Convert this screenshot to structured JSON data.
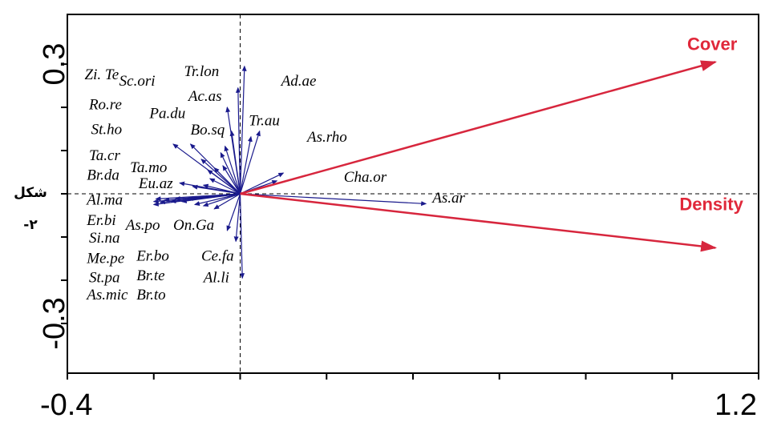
{
  "chart_data": {
    "type": "scatter",
    "subtype": "ordination biplot",
    "xlim": [
      -0.4,
      1.2
    ],
    "ylim": [
      -0.3,
      0.3
    ],
    "x_tick_labels": [
      {
        "value": -0.4,
        "text": "-0.4"
      },
      {
        "value": 1.2,
        "text": "1.2"
      }
    ],
    "y_tick_labels": [
      {
        "value": 0.3,
        "text": "0.3"
      },
      {
        "value": -0.3,
        "text": "-0.3"
      }
    ],
    "side_label": [
      "شكل",
      "-٢"
    ],
    "colors": {
      "species_arrows": "#1a1a8c",
      "env_arrows": "#d7263d",
      "env_labels": "#e0283a"
    },
    "env_vectors": [
      {
        "name": "Cover",
        "x": 1.1,
        "y": 0.305
      },
      {
        "name": "Density",
        "x": 1.1,
        "y": -0.125
      }
    ],
    "species_labels": [
      {
        "name": "Zi. Te",
        "x": -0.36,
        "y": 0.265
      },
      {
        "name": "Sc.ori",
        "x": -0.28,
        "y": 0.25
      },
      {
        "name": "Tr.lon",
        "x": -0.13,
        "y": 0.272
      },
      {
        "name": "Ad.ae",
        "x": 0.095,
        "y": 0.25
      },
      {
        "name": "Ac.as",
        "x": -0.12,
        "y": 0.215
      },
      {
        "name": "Ro.re",
        "x": -0.35,
        "y": 0.195
      },
      {
        "name": "Pa.du",
        "x": -0.21,
        "y": 0.175
      },
      {
        "name": "Tr.au",
        "x": 0.02,
        "y": 0.158
      },
      {
        "name": "Bo.sq",
        "x": -0.115,
        "y": 0.137
      },
      {
        "name": "St.ho",
        "x": -0.345,
        "y": 0.138
      },
      {
        "name": "As.rho",
        "x": 0.155,
        "y": 0.12
      },
      {
        "name": "Ta.cr",
        "x": -0.35,
        "y": 0.078
      },
      {
        "name": "Ta.mo",
        "x": -0.255,
        "y": 0.05
      },
      {
        "name": "Br.da",
        "x": -0.355,
        "y": 0.032
      },
      {
        "name": "Cha.or",
        "x": 0.24,
        "y": 0.028
      },
      {
        "name": "Eu.az",
        "x": -0.235,
        "y": 0.013
      },
      {
        "name": "Al.ma",
        "x": -0.355,
        "y": -0.025
      },
      {
        "name": "As.ar",
        "x": 0.445,
        "y": -0.02
      },
      {
        "name": "Er.bi",
        "x": -0.355,
        "y": -0.072
      },
      {
        "name": "As.po",
        "x": -0.265,
        "y": -0.083
      },
      {
        "name": "On.Ga",
        "x": -0.155,
        "y": -0.083
      },
      {
        "name": "Si.na",
        "x": -0.35,
        "y": -0.113
      },
      {
        "name": "Me.pe",
        "x": -0.355,
        "y": -0.16
      },
      {
        "name": "Er.bo",
        "x": -0.24,
        "y": -0.155
      },
      {
        "name": "Ce.fa",
        "x": -0.09,
        "y": -0.155
      },
      {
        "name": "St.pa",
        "x": -0.35,
        "y": -0.205
      },
      {
        "name": "Br.te",
        "x": -0.24,
        "y": -0.2
      },
      {
        "name": "Al.li",
        "x": -0.085,
        "y": -0.205
      },
      {
        "name": "As.mic",
        "x": -0.355,
        "y": -0.245
      },
      {
        "name": "Br.to",
        "x": -0.24,
        "y": -0.245
      }
    ],
    "species_vectors": [
      {
        "x": 0.01,
        "y": 0.295
      },
      {
        "x": -0.005,
        "y": 0.245
      },
      {
        "x": -0.03,
        "y": 0.2
      },
      {
        "x": 0.045,
        "y": 0.145
      },
      {
        "x": 0.025,
        "y": 0.132
      },
      {
        "x": -0.02,
        "y": 0.145
      },
      {
        "x": -0.035,
        "y": 0.11
      },
      {
        "x": -0.045,
        "y": 0.095
      },
      {
        "x": -0.04,
        "y": 0.065
      },
      {
        "x": -0.06,
        "y": 0.06
      },
      {
        "x": -0.075,
        "y": 0.055
      },
      {
        "x": -0.07,
        "y": 0.035
      },
      {
        "x": -0.09,
        "y": 0.08
      },
      {
        "x": -0.115,
        "y": 0.115
      },
      {
        "x": -0.155,
        "y": 0.115
      },
      {
        "x": -0.085,
        "y": 0.02
      },
      {
        "x": -0.14,
        "y": 0.025
      },
      {
        "x": -0.11,
        "y": 0.017
      },
      {
        "x": 0.1,
        "y": 0.048
      },
      {
        "x": 0.085,
        "y": 0.03
      },
      {
        "x": 0.43,
        "y": -0.023
      },
      {
        "x": -0.2,
        "y": -0.025
      },
      {
        "x": -0.2,
        "y": -0.018
      },
      {
        "x": -0.195,
        "y": -0.012
      },
      {
        "x": -0.185,
        "y": -0.02
      },
      {
        "x": -0.175,
        "y": -0.015
      },
      {
        "x": -0.16,
        "y": -0.018
      },
      {
        "x": -0.15,
        "y": -0.012
      },
      {
        "x": -0.135,
        "y": -0.018
      },
      {
        "x": -0.12,
        "y": -0.012
      },
      {
        "x": -0.105,
        "y": -0.025
      },
      {
        "x": -0.085,
        "y": -0.028
      },
      {
        "x": -0.06,
        "y": -0.035
      },
      {
        "x": -0.03,
        "y": -0.085
      },
      {
        "x": -0.01,
        "y": -0.11
      },
      {
        "x": 0.005,
        "y": -0.195
      }
    ]
  }
}
